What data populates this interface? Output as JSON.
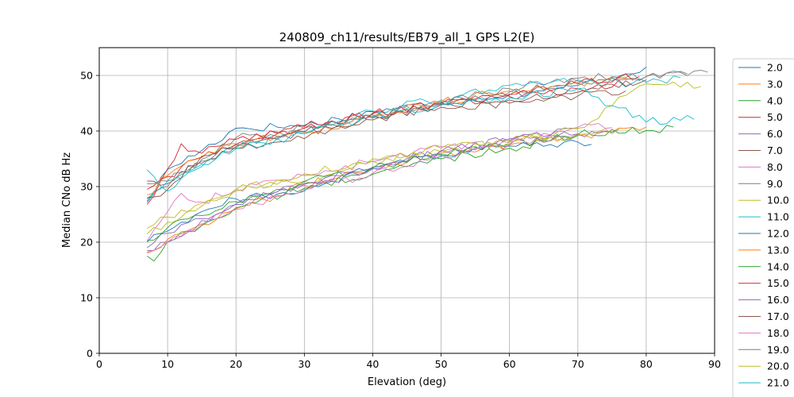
{
  "chart_data": {
    "type": "line",
    "title": "240809_ch11/results/EB79_all_1 GPS L2(E)",
    "xlabel": "Elevation (deg)",
    "ylabel": "Median CNo dB Hz",
    "xlim": [
      0,
      90
    ],
    "ylim": [
      0,
      55
    ],
    "x_ticks": [
      "0",
      "10",
      "20",
      "30",
      "40",
      "50",
      "60",
      "70",
      "80",
      "90"
    ],
    "y_ticks": [
      "0",
      "10",
      "20",
      "30",
      "40",
      "50"
    ],
    "grid": true,
    "legend_position": "right, outside plot",
    "series": [
      {
        "name": "2.0",
        "color": "#1f77b4",
        "x": [
          7,
          10,
          15,
          20,
          30,
          40,
          50,
          60,
          70,
          80
        ],
        "y": [
          27.2,
          33.1,
          36.5,
          40.5,
          41.0,
          43.5,
          45.1,
          46.5,
          48.2,
          51.5
        ]
      },
      {
        "name": "3.0",
        "color": "#ff7f0e",
        "x": [
          7,
          10,
          15,
          20,
          30,
          40,
          50,
          60,
          70,
          80
        ],
        "y": [
          18.0,
          20.5,
          23.3,
          26.0,
          30.2,
          33.5,
          36.0,
          37.5,
          39.2,
          40.7
        ]
      },
      {
        "name": "4.0",
        "color": "#2ca02c",
        "x": [
          7,
          8,
          10,
          15,
          20,
          30,
          40,
          50,
          60,
          70,
          80,
          84
        ],
        "y": [
          17.5,
          16.6,
          20.1,
          23.0,
          26.2,
          29.7,
          32.2,
          35.0,
          36.9,
          39.4,
          40.1,
          40.7
        ]
      },
      {
        "name": "5.0",
        "color": "#d62728",
        "x": [
          7,
          10,
          15,
          20,
          30,
          40,
          50,
          60,
          70,
          78
        ],
        "y": [
          29.5,
          31.8,
          35.3,
          37.6,
          40.8,
          43.2,
          44.8,
          46.2,
          47.6,
          48.6
        ]
      },
      {
        "name": "6.0",
        "color": "#9467bd",
        "x": [
          7,
          10,
          15,
          20,
          30,
          40,
          50,
          60,
          70,
          76
        ],
        "y": [
          19.0,
          21.6,
          24.2,
          26.9,
          30.6,
          33.3,
          36.4,
          38.2,
          39.5,
          40.3
        ]
      },
      {
        "name": "7.0",
        "color": "#8c564b",
        "x": [
          7,
          10,
          15,
          20,
          30,
          40,
          50,
          60,
          70,
          77
        ],
        "y": [
          31.0,
          30.5,
          34.2,
          37.2,
          38.6,
          42.5,
          44.3,
          45.0,
          46.3,
          47.2
        ]
      },
      {
        "name": "8.0",
        "color": "#e377c2",
        "x": [
          7,
          10,
          12,
          15,
          20,
          30,
          40,
          50,
          60,
          70,
          75
        ],
        "y": [
          20.2,
          25.5,
          28.8,
          27.2,
          29.5,
          32.0,
          34.5,
          37.2,
          38.0,
          40.7,
          40.6
        ]
      },
      {
        "name": "9.0",
        "color": "#7f7f7f",
        "x": [
          7,
          10,
          15,
          20,
          30,
          40,
          50,
          60,
          70,
          80,
          87,
          89
        ],
        "y": [
          27.8,
          30.0,
          34.9,
          38.8,
          40.5,
          42.3,
          45.0,
          47.6,
          49.5,
          49.8,
          50.8,
          50.6
        ]
      },
      {
        "name": "10.0",
        "color": "#bcbd22",
        "x": [
          7,
          10,
          15,
          20,
          30,
          40,
          50,
          60,
          70,
          76
        ],
        "y": [
          21.5,
          23.6,
          26.5,
          29.5,
          31.0,
          34.6,
          36.3,
          38.3,
          39.3,
          40.4
        ]
      },
      {
        "name": "11.0",
        "color": "#17becf",
        "x": [
          7,
          10,
          15,
          20,
          30,
          40,
          50,
          60,
          70,
          78,
          85
        ],
        "y": [
          27.4,
          31.0,
          34.0,
          36.9,
          39.5,
          43.6,
          45.6,
          48.2,
          49.2,
          48.6,
          49.6
        ]
      },
      {
        "name": "12.0",
        "color": "#1f77b4",
        "x": [
          7,
          10,
          15,
          20,
          30,
          40,
          50,
          60,
          70,
          72
        ],
        "y": [
          20.0,
          22.0,
          25.5,
          27.8,
          29.2,
          33.5,
          35.5,
          37.3,
          38.0,
          37.6
        ]
      },
      {
        "name": "13.0",
        "color": "#ff7f0e",
        "x": [
          7,
          10,
          15,
          20,
          30,
          40,
          50,
          60,
          70,
          78
        ],
        "y": [
          28.5,
          32.0,
          35.2,
          37.7,
          39.8,
          42.6,
          45.3,
          47.2,
          48.7,
          49.3
        ]
      },
      {
        "name": "14.0",
        "color": "#2ca02c",
        "x": [
          7,
          10,
          15,
          20,
          30,
          40,
          50,
          60,
          70
        ],
        "y": [
          20.3,
          22.6,
          24.8,
          27.3,
          30.9,
          33.3,
          35.8,
          37.6,
          39.2
        ]
      },
      {
        "name": "15.0",
        "color": "#d62728",
        "x": [
          7,
          10,
          12,
          15,
          20,
          30,
          40,
          50,
          60,
          70,
          79
        ],
        "y": [
          26.8,
          33.2,
          37.7,
          36.0,
          38.5,
          40.5,
          43.1,
          44.9,
          46.6,
          48.5,
          49.8
        ]
      },
      {
        "name": "16.0",
        "color": "#9467bd",
        "x": [
          7,
          10,
          15,
          20,
          30,
          40,
          50,
          60,
          70
        ],
        "y": [
          18.5,
          20.0,
          23.9,
          26.8,
          30.4,
          33.2,
          36.5,
          38.6,
          40.4
        ]
      },
      {
        "name": "17.0",
        "color": "#8c564b",
        "x": [
          7,
          10,
          15,
          20,
          30,
          40,
          50,
          60,
          70,
          80
        ],
        "y": [
          28.0,
          29.5,
          35.5,
          36.9,
          39.8,
          42.0,
          44.7,
          45.6,
          47.0,
          49.2
        ]
      },
      {
        "name": "18.0",
        "color": "#e377c2",
        "x": [
          7,
          10,
          15,
          20,
          30,
          40,
          50,
          60,
          70
        ],
        "y": [
          18.2,
          20.0,
          23.1,
          25.9,
          29.5,
          32.4,
          35.7,
          37.5,
          39.6
        ]
      },
      {
        "name": "19.0",
        "color": "#7f7f7f",
        "x": [
          7,
          10,
          15,
          20,
          30,
          40,
          50,
          60,
          70,
          78,
          82,
          86
        ],
        "y": [
          30.5,
          31.0,
          34.6,
          37.5,
          39.9,
          42.9,
          45.2,
          47.0,
          49.0,
          49.5,
          49.8,
          50.3
        ]
      },
      {
        "name": "20.0",
        "color": "#bcbd22",
        "x": [
          7,
          10,
          15,
          20,
          30,
          40,
          50,
          60,
          70,
          80,
          88
        ],
        "y": [
          22.5,
          24.5,
          27.0,
          29.2,
          32.3,
          35.0,
          36.9,
          38.0,
          40.5,
          48.5,
          48.0
        ]
      },
      {
        "name": "21.0",
        "color": "#17becf",
        "x": [
          7,
          10,
          15,
          20,
          30,
          40,
          50,
          60,
          70,
          80,
          87
        ],
        "y": [
          33.0,
          29.2,
          33.6,
          36.8,
          39.5,
          42.6,
          44.9,
          46.0,
          47.6,
          41.6,
          42.1
        ]
      }
    ]
  }
}
